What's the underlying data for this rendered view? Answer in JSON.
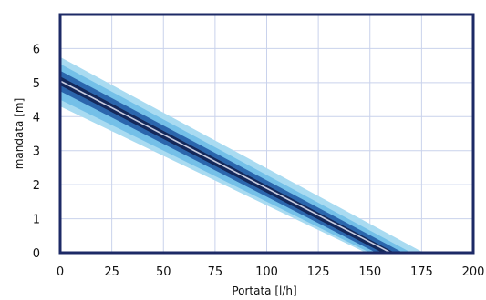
{
  "chart_data": {
    "type": "area",
    "title": "",
    "xlabel": "Portata [l/h]",
    "ylabel": "mandata [m]",
    "xlim": [
      0,
      200
    ],
    "ylim": [
      0,
      7
    ],
    "x_ticks": [
      "0",
      "25",
      "50",
      "75",
      "100",
      "125",
      "150",
      "175",
      "200"
    ],
    "y_ticks": [
      "0",
      "1",
      "2",
      "3",
      "4",
      "5",
      "6"
    ],
    "grid": true,
    "series": [
      {
        "role": "outer-band-upper",
        "x": [
          0,
          176
        ],
        "y": [
          5.75,
          0
        ],
        "color": "#a9dbf1"
      },
      {
        "role": "outer-band-lower",
        "x": [
          0,
          148
        ],
        "y": [
          4.3,
          0
        ],
        "color": "#a9dbf1"
      },
      {
        "role": "mid-band-upper",
        "x": [
          0,
          170
        ],
        "y": [
          5.55,
          0
        ],
        "color": "#74c0e8"
      },
      {
        "role": "mid-band-lower",
        "x": [
          0,
          150
        ],
        "y": [
          4.5,
          0
        ],
        "color": "#74c0e8"
      },
      {
        "role": "inner-band-upper",
        "x": [
          0,
          166
        ],
        "y": [
          5.35,
          0
        ],
        "color": "#2b66ad"
      },
      {
        "role": "inner-band-lower",
        "x": [
          0,
          153
        ],
        "y": [
          4.75,
          0
        ],
        "color": "#2b66ad"
      },
      {
        "role": "core-band-upper",
        "x": [
          0,
          162
        ],
        "y": [
          5.18,
          0
        ],
        "color": "#14285a"
      },
      {
        "role": "core-band-lower",
        "x": [
          0,
          156
        ],
        "y": [
          4.92,
          0
        ],
        "color": "#14285a"
      },
      {
        "role": "centre-line",
        "x": [
          0,
          160
        ],
        "y": [
          5.05,
          0
        ],
        "color": "#c6cbe0"
      }
    ],
    "colors": {
      "frame": "#1d2a66",
      "grid": "#c9d2ec",
      "text": "#111111"
    }
  }
}
